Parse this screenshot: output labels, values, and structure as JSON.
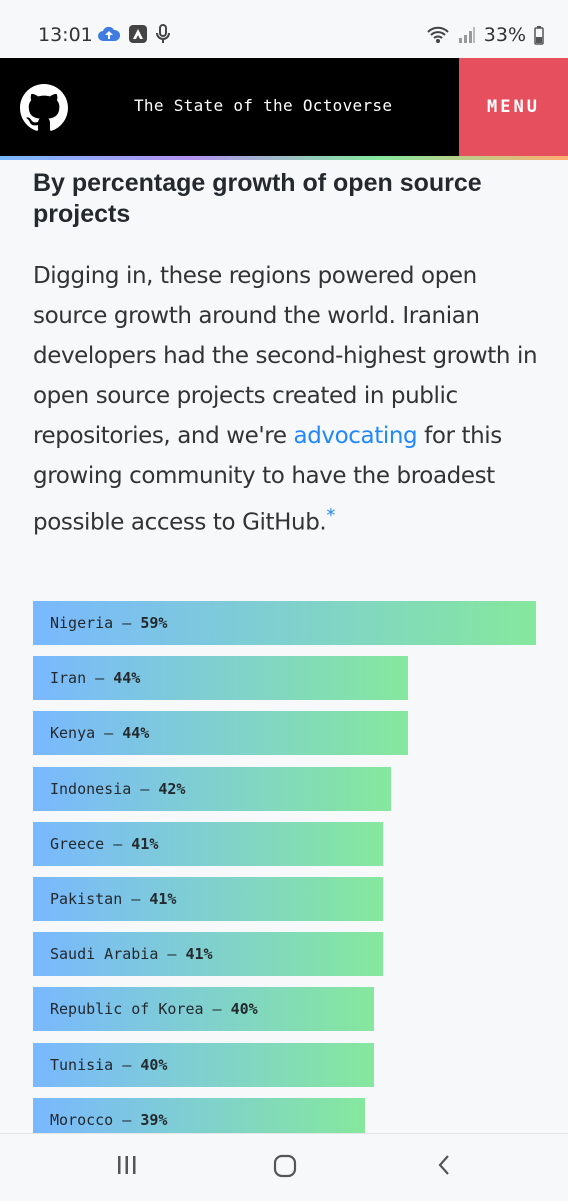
{
  "status_bar": {
    "time": "13:01",
    "battery": "33%"
  },
  "header": {
    "title": "The State of the Octoverse",
    "menu_label": "MENU",
    "logo_icon": "github-octocat-icon"
  },
  "section": {
    "title": "By percentage growth of open source projects",
    "intro_before_link": "Digging in, these regions powered open source growth around the world. Iranian developers had the second-highest growth in open source projects created in public repositories, and we're ",
    "intro_link": "advocating",
    "intro_after_link": " for this growing community to have the broadest possible access to GitHub.",
    "footnote_marker": "*"
  },
  "chart_data": {
    "type": "bar",
    "orientation": "horizontal",
    "categories": [
      "Nigeria",
      "Iran",
      "Kenya",
      "Indonesia",
      "Greece",
      "Pakistan",
      "Saudi Arabia",
      "Republic of Korea",
      "Tunisia",
      "Morocco"
    ],
    "values": [
      59,
      44,
      44,
      42,
      41,
      41,
      41,
      40,
      40,
      39
    ],
    "labels": [
      "59%",
      "44%",
      "44%",
      "42%",
      "41%",
      "41%",
      "41%",
      "40%",
      "40%",
      "39%"
    ],
    "separator": " – ",
    "colors": {
      "gradient_start": "#79b8ff",
      "gradient_end": "#85e89d"
    }
  },
  "nav": {
    "recent_icon": "recent-apps-icon",
    "home_icon": "home-icon",
    "back_icon": "back-icon"
  }
}
